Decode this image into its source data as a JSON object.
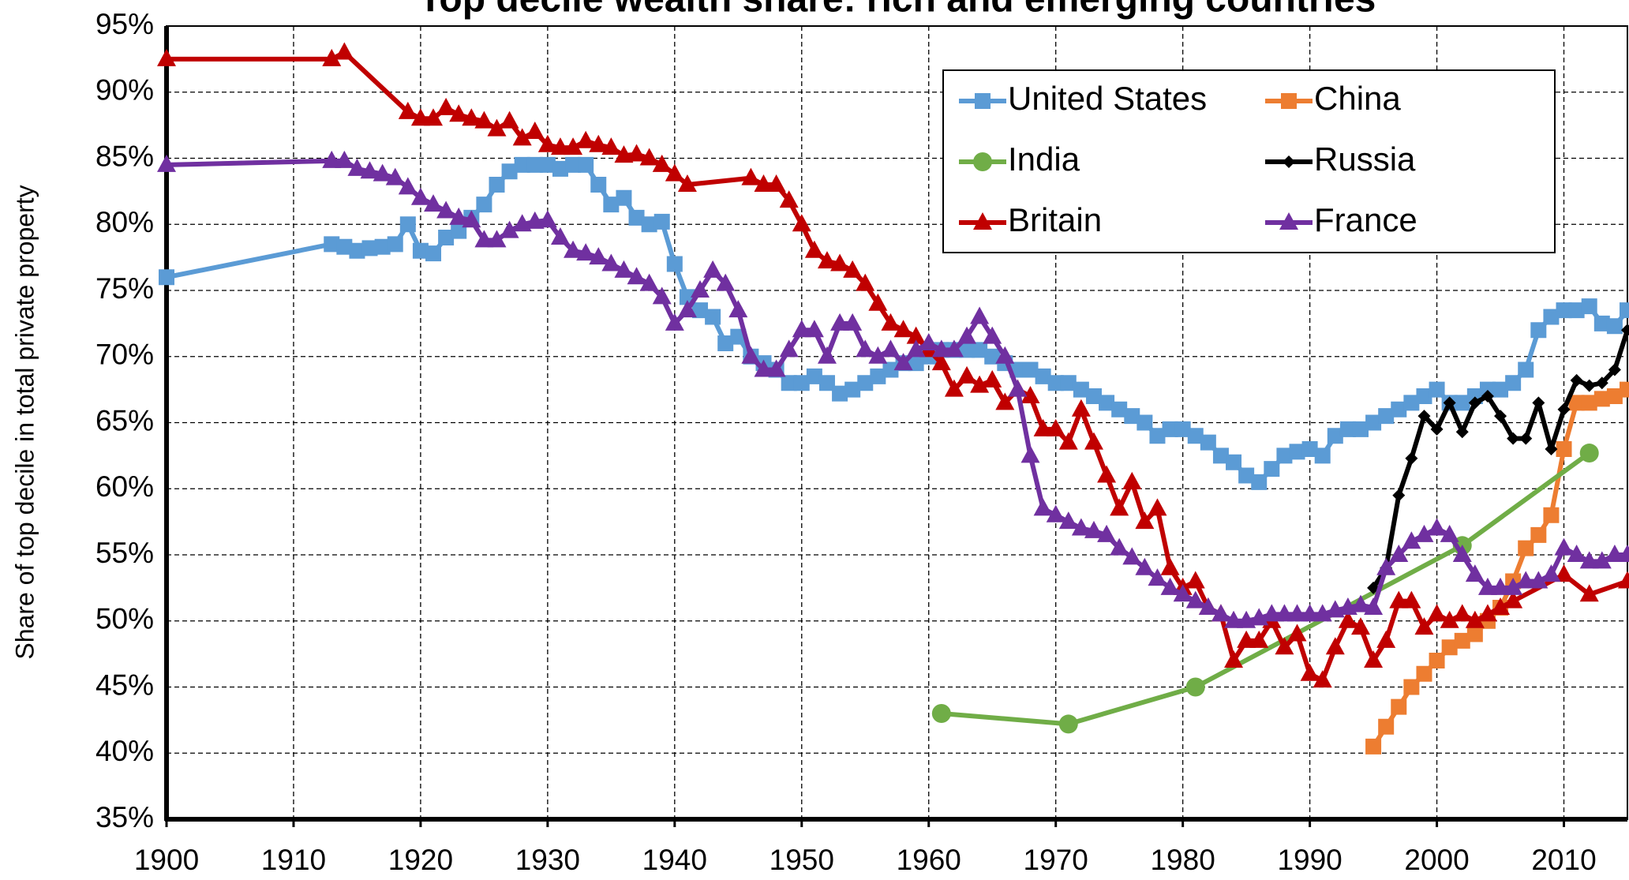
{
  "chart_data": {
    "type": "line",
    "title": "Top decile wealth share: rich and emerging countries",
    "y_label": "Share of top decile in total private property",
    "xlim": [
      1900,
      2015
    ],
    "xticks": [
      1900,
      1910,
      1920,
      1930,
      1940,
      1950,
      1960,
      1970,
      1980,
      1990,
      2000,
      2010
    ],
    "ylim": [
      35,
      95
    ],
    "yticks": [
      {
        "value": 35,
        "label": "35%"
      },
      {
        "value": 40,
        "label": "40%"
      },
      {
        "value": 45,
        "label": "45%"
      },
      {
        "value": 50,
        "label": "50%"
      },
      {
        "value": 55,
        "label": "55%"
      },
      {
        "value": 60,
        "label": "60%"
      },
      {
        "value": 65,
        "label": "65%"
      },
      {
        "value": 70,
        "label": "70%"
      },
      {
        "value": 75,
        "label": "75%"
      },
      {
        "value": 80,
        "label": "80%"
      },
      {
        "value": 85,
        "label": "85%"
      },
      {
        "value": 90,
        "label": "90%"
      },
      {
        "value": 95,
        "label": "95%"
      }
    ],
    "grid": true,
    "legend": "top-right",
    "series": [
      {
        "name": "United States",
        "color": "#5b9bd5",
        "marker": "square",
        "x": [
          1900,
          1913,
          1914,
          1915,
          1916,
          1917,
          1918,
          1919,
          1920,
          1921,
          1922,
          1923,
          1924,
          1925,
          1926,
          1927,
          1928,
          1929,
          1930,
          1931,
          1932,
          1933,
          1934,
          1935,
          1936,
          1937,
          1938,
          1939,
          1940,
          1941,
          1942,
          1943,
          1944,
          1945,
          1946,
          1947,
          1948,
          1949,
          1950,
          1951,
          1952,
          1953,
          1954,
          1955,
          1956,
          1957,
          1958,
          1959,
          1960,
          1961,
          1962,
          1963,
          1964,
          1965,
          1966,
          1967,
          1968,
          1969,
          1970,
          1971,
          1972,
          1973,
          1974,
          1975,
          1976,
          1977,
          1978,
          1979,
          1980,
          1981,
          1982,
          1983,
          1984,
          1985,
          1986,
          1987,
          1988,
          1989,
          1990,
          1991,
          1992,
          1993,
          1994,
          1995,
          1996,
          1997,
          1998,
          1999,
          2000,
          2001,
          2002,
          2003,
          2004,
          2005,
          2006,
          2007,
          2008,
          2009,
          2010,
          2011,
          2012,
          2013,
          2014,
          2015
        ],
        "values": [
          76,
          78.5,
          78.3,
          78,
          78.2,
          78.3,
          78.5,
          80,
          78,
          77.8,
          79,
          79.5,
          80.5,
          81.5,
          83,
          84,
          84.5,
          84.5,
          84.5,
          84.2,
          84.5,
          84.5,
          83,
          81.5,
          82,
          80.5,
          80,
          80.2,
          77,
          74.5,
          73.5,
          73,
          71,
          71.5,
          70,
          69.5,
          69,
          68,
          68,
          68.5,
          68,
          67.2,
          67.5,
          68,
          68.5,
          69,
          69.5,
          69.5,
          70,
          70.5,
          70.5,
          70.5,
          70.5,
          70,
          69.5,
          69,
          69,
          68.5,
          68,
          68,
          67.5,
          67,
          66.5,
          66,
          65.5,
          65,
          64,
          64.5,
          64.5,
          64,
          63.5,
          62.5,
          62,
          61,
          60.5,
          61.5,
          62.5,
          62.8,
          63,
          62.5,
          64,
          64.5,
          64.5,
          65,
          65.5,
          66,
          66.5,
          67,
          67.5,
          66.5,
          66.5,
          67,
          67.5,
          67.5,
          68,
          69,
          72,
          73,
          73.5,
          73.5,
          73.8,
          72.5,
          72.3,
          73.5
        ]
      },
      {
        "name": "China",
        "color": "#ed7d31",
        "marker": "square",
        "x": [
          1995,
          1996,
          1997,
          1998,
          1999,
          2000,
          2001,
          2002,
          2003,
          2004,
          2005,
          2006,
          2007,
          2008,
          2009,
          2010,
          2011,
          2012,
          2013,
          2014,
          2015
        ],
        "values": [
          40.5,
          42,
          43.5,
          45,
          46,
          47,
          48,
          48.5,
          49,
          50,
          51,
          53,
          55.5,
          56.5,
          58,
          63,
          66.5,
          66.5,
          66.8,
          67,
          67.5
        ]
      },
      {
        "name": "India",
        "color": "#70ad47",
        "marker": "circle",
        "x": [
          1961,
          1971,
          1981,
          2002,
          2012
        ],
        "values": [
          43,
          42.2,
          45,
          55.7,
          62.7
        ]
      },
      {
        "name": "Russia",
        "color": "#000000",
        "marker": "diamond",
        "x": [
          1995,
          1996,
          1997,
          1998,
          1999,
          2000,
          2001,
          2002,
          2003,
          2004,
          2005,
          2006,
          2007,
          2008,
          2009,
          2010,
          2011,
          2012,
          2013,
          2014,
          2015
        ],
        "values": [
          52.5,
          54,
          59.5,
          62.3,
          65.5,
          64.5,
          66.5,
          64.3,
          66.5,
          67,
          65.5,
          63.8,
          63.8,
          66.5,
          63,
          66,
          68.2,
          67.8,
          68,
          69,
          72
        ]
      },
      {
        "name": "Britain",
        "color": "#c00000",
        "marker": "triangle",
        "x": [
          1900,
          1913,
          1914,
          1919,
          1920,
          1921,
          1922,
          1923,
          1924,
          1925,
          1926,
          1927,
          1928,
          1929,
          1930,
          1931,
          1932,
          1933,
          1934,
          1935,
          1936,
          1937,
          1938,
          1939,
          1940,
          1941,
          1946,
          1947,
          1948,
          1949,
          1950,
          1951,
          1952,
          1953,
          1954,
          1955,
          1956,
          1957,
          1958,
          1959,
          1960,
          1961,
          1962,
          1963,
          1964,
          1965,
          1966,
          1967,
          1968,
          1969,
          1970,
          1971,
          1972,
          1973,
          1974,
          1975,
          1976,
          1977,
          1978,
          1979,
          1980,
          1981,
          1982,
          1983,
          1984,
          1985,
          1986,
          1987,
          1988,
          1989,
          1990,
          1991,
          1992,
          1993,
          1994,
          1995,
          1996,
          1997,
          1998,
          1999,
          2000,
          2001,
          2002,
          2003,
          2004,
          2005,
          2006,
          2010,
          2012,
          2015
        ],
        "values": [
          92.5,
          92.5,
          93,
          88.5,
          88,
          88,
          88.8,
          88.3,
          88,
          87.8,
          87.2,
          87.8,
          86.5,
          87,
          86,
          85.8,
          85.8,
          86.3,
          86,
          85.8,
          85.2,
          85.3,
          85,
          84.5,
          83.8,
          83,
          83.5,
          83,
          83,
          81.8,
          80,
          78,
          77.2,
          77,
          76.5,
          75.5,
          74,
          72.5,
          72,
          71.5,
          70.5,
          69.5,
          67.5,
          68.5,
          67.8,
          68.2,
          66.5,
          67.5,
          67,
          64.5,
          64.5,
          63.5,
          66,
          63.5,
          61,
          58.5,
          60.5,
          57.5,
          58.5,
          54,
          52.5,
          53,
          51,
          50.5,
          47,
          48.5,
          48.5,
          50,
          48,
          49,
          46,
          45.5,
          48,
          50,
          49.5,
          47,
          48.5,
          51.5,
          51.5,
          49.5,
          50.5,
          50,
          50.5,
          50,
          50.5,
          51,
          51.5,
          53.5,
          52,
          53
        ]
      },
      {
        "name": "France",
        "color": "#7030a0",
        "marker": "triangle",
        "x": [
          1900,
          1913,
          1914,
          1915,
          1916,
          1917,
          1918,
          1919,
          1920,
          1921,
          1922,
          1923,
          1924,
          1925,
          1926,
          1927,
          1928,
          1929,
          1930,
          1931,
          1932,
          1933,
          1934,
          1935,
          1936,
          1937,
          1938,
          1939,
          1940,
          1941,
          1942,
          1943,
          1944,
          1945,
          1946,
          1947,
          1948,
          1949,
          1950,
          1951,
          1952,
          1953,
          1954,
          1955,
          1956,
          1957,
          1958,
          1959,
          1960,
          1961,
          1962,
          1963,
          1964,
          1965,
          1966,
          1967,
          1968,
          1969,
          1970,
          1971,
          1972,
          1973,
          1974,
          1975,
          1976,
          1977,
          1978,
          1979,
          1980,
          1981,
          1982,
          1983,
          1984,
          1985,
          1986,
          1987,
          1988,
          1989,
          1990,
          1991,
          1992,
          1993,
          1994,
          1995,
          1996,
          1997,
          1998,
          1999,
          2000,
          2001,
          2002,
          2003,
          2004,
          2005,
          2006,
          2007,
          2008,
          2009,
          2010,
          2011,
          2012,
          2013,
          2014,
          2015
        ],
        "values": [
          84.5,
          84.8,
          84.8,
          84.2,
          84,
          83.8,
          83.5,
          82.8,
          82,
          81.5,
          81,
          80.5,
          80.3,
          78.8,
          78.8,
          79.5,
          80,
          80.2,
          80.3,
          79,
          78,
          77.8,
          77.5,
          77,
          76.5,
          76,
          75.5,
          74.5,
          72.5,
          73.5,
          75,
          76.5,
          75.5,
          73.5,
          70,
          69,
          69,
          70.5,
          72,
          72,
          70,
          72.5,
          72.5,
          70.5,
          70,
          70.5,
          69.5,
          70.5,
          71,
          70.5,
          70.5,
          71.5,
          73,
          71.5,
          70,
          67.5,
          62.5,
          58.5,
          58,
          57.5,
          57,
          56.8,
          56.5,
          55.5,
          54.8,
          54,
          53.2,
          52.5,
          52,
          51.5,
          51,
          50.5,
          50,
          50,
          50.2,
          50.5,
          50.5,
          50.5,
          50.5,
          50.5,
          50.8,
          51,
          51.2,
          51,
          54,
          55,
          56,
          56.5,
          57,
          56.5,
          55,
          53.5,
          52.5,
          52.5,
          52.5,
          53,
          53,
          53.5,
          55.5,
          55,
          54.5,
          54.5,
          55,
          55
        ]
      }
    ]
  }
}
